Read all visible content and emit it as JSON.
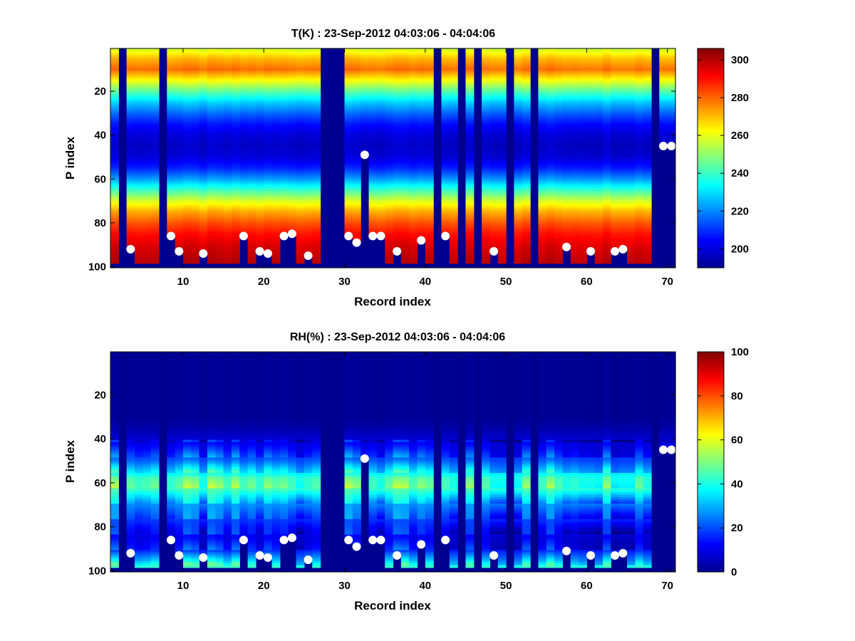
{
  "colors": {
    "background": "#ffffff",
    "masked": "#00008f",
    "marker": "#ffffff",
    "colormap": "jet"
  },
  "chart_data": [
    {
      "type": "heatmap",
      "title": "T(K) : 23-Sep-2012 04:03:06 - 04:04:06",
      "xlabel": "Record index",
      "ylabel": "P index",
      "xlim": [
        1,
        71
      ],
      "ylim": [
        100,
        1
      ],
      "y_reversed": true,
      "xticks": [
        10,
        20,
        30,
        40,
        50,
        60,
        70
      ],
      "yticks": [
        20,
        40,
        60,
        80,
        100
      ],
      "colorbar": {
        "min": 190,
        "max": 306,
        "ticks": [
          200,
          220,
          240,
          260,
          280,
          300
        ]
      },
      "profile_note": "P index level 1 top, 100 bottom",
      "profile_levels": [
        1,
        5,
        10,
        15,
        20,
        25,
        30,
        35,
        40,
        45,
        50,
        55,
        60,
        65,
        70,
        75,
        80,
        85,
        90,
        95,
        100
      ],
      "profile_values": [
        258,
        270,
        279,
        262,
        244,
        228,
        216,
        206,
        200,
        198,
        200,
        208,
        222,
        240,
        258,
        272,
        282,
        290,
        295,
        298,
        300
      ],
      "missing_records": [
        2,
        7,
        27,
        28,
        29,
        41,
        44,
        46,
        50,
        53,
        68
      ],
      "surface_level": [
        100,
        100,
        92,
        100,
        100,
        100,
        100,
        86,
        93,
        100,
        100,
        94,
        100,
        100,
        100,
        100,
        86,
        100,
        93,
        94,
        100,
        86,
        85,
        100,
        95,
        100,
        100,
        100,
        100,
        86,
        89,
        49,
        86,
        86,
        100,
        93,
        100,
        100,
        88,
        100,
        100,
        86,
        100,
        100,
        100,
        100,
        100,
        93,
        100,
        100,
        100,
        100,
        100,
        100,
        100,
        100,
        91,
        100,
        100,
        93,
        100,
        100,
        93,
        92,
        100,
        100,
        100,
        100,
        45,
        45
      ],
      "markers": [
        {
          "record": 3,
          "level": 92
        },
        {
          "record": 8,
          "level": 86
        },
        {
          "record": 9,
          "level": 93
        },
        {
          "record": 12,
          "level": 94
        },
        {
          "record": 17,
          "level": 86
        },
        {
          "record": 19,
          "level": 93
        },
        {
          "record": 20,
          "level": 94
        },
        {
          "record": 22,
          "level": 86
        },
        {
          "record": 23,
          "level": 85
        },
        {
          "record": 25,
          "level": 95
        },
        {
          "record": 30,
          "level": 86
        },
        {
          "record": 31,
          "level": 89
        },
        {
          "record": 32,
          "level": 49
        },
        {
          "record": 33,
          "level": 86
        },
        {
          "record": 34,
          "level": 86
        },
        {
          "record": 36,
          "level": 93
        },
        {
          "record": 39,
          "level": 88
        },
        {
          "record": 42,
          "level": 86
        },
        {
          "record": 48,
          "level": 93
        },
        {
          "record": 57,
          "level": 91
        },
        {
          "record": 60,
          "level": 93
        },
        {
          "record": 63,
          "level": 93
        },
        {
          "record": 64,
          "level": 92
        },
        {
          "record": 69,
          "level": 45
        },
        {
          "record": 70,
          "level": 45
        }
      ]
    },
    {
      "type": "heatmap",
      "title": "RH(%) : 23-Sep-2012 04:03:06 - 04:04:06",
      "xlabel": "Record index",
      "ylabel": "P index",
      "xlim": [
        1,
        71
      ],
      "ylim": [
        100,
        1
      ],
      "y_reversed": true,
      "xticks": [
        10,
        20,
        30,
        40,
        50,
        60,
        70
      ],
      "yticks": [
        20,
        40,
        60,
        80,
        100
      ],
      "colorbar": {
        "min": 0,
        "max": 100,
        "ticks": [
          0,
          20,
          40,
          60,
          80,
          100
        ]
      },
      "profile_levels": [
        1,
        30,
        35,
        40,
        45,
        50,
        55,
        58,
        62,
        65,
        70,
        75,
        80,
        85,
        90,
        95,
        100
      ],
      "profile_values": [
        2,
        2,
        4,
        8,
        14,
        22,
        35,
        44,
        46,
        38,
        26,
        20,
        14,
        10,
        14,
        30,
        50
      ],
      "missing_records": [
        2,
        7,
        27,
        28,
        29,
        41,
        44,
        46,
        50,
        53,
        68
      ],
      "surface_level": [
        100,
        100,
        92,
        100,
        100,
        100,
        100,
        86,
        93,
        100,
        100,
        94,
        100,
        100,
        100,
        100,
        86,
        100,
        93,
        94,
        100,
        86,
        85,
        100,
        95,
        100,
        100,
        100,
        100,
        86,
        89,
        49,
        86,
        86,
        100,
        93,
        100,
        100,
        88,
        100,
        100,
        86,
        100,
        100,
        100,
        100,
        100,
        93,
        100,
        100,
        100,
        100,
        100,
        100,
        100,
        100,
        91,
        100,
        100,
        93,
        100,
        100,
        93,
        92,
        100,
        100,
        100,
        100,
        45,
        45
      ],
      "markers": [
        {
          "record": 3,
          "level": 92
        },
        {
          "record": 8,
          "level": 86
        },
        {
          "record": 9,
          "level": 93
        },
        {
          "record": 12,
          "level": 94
        },
        {
          "record": 17,
          "level": 86
        },
        {
          "record": 19,
          "level": 93
        },
        {
          "record": 20,
          "level": 94
        },
        {
          "record": 22,
          "level": 86
        },
        {
          "record": 23,
          "level": 85
        },
        {
          "record": 25,
          "level": 95
        },
        {
          "record": 30,
          "level": 86
        },
        {
          "record": 31,
          "level": 89
        },
        {
          "record": 32,
          "level": 49
        },
        {
          "record": 33,
          "level": 86
        },
        {
          "record": 34,
          "level": 86
        },
        {
          "record": 36,
          "level": 93
        },
        {
          "record": 39,
          "level": 88
        },
        {
          "record": 42,
          "level": 86
        },
        {
          "record": 48,
          "level": 93
        },
        {
          "record": 57,
          "level": 91
        },
        {
          "record": 60,
          "level": 93
        },
        {
          "record": 63,
          "level": 93
        },
        {
          "record": 64,
          "level": 92
        },
        {
          "record": 69,
          "level": 45
        },
        {
          "record": 70,
          "level": 45
        }
      ]
    }
  ]
}
